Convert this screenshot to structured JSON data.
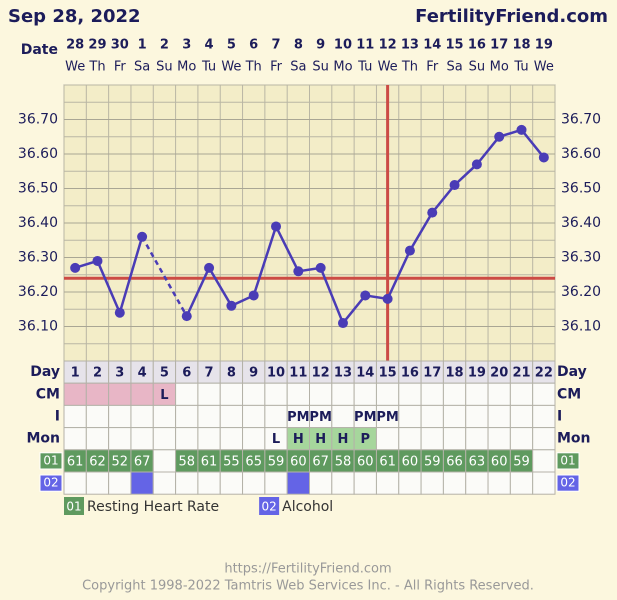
{
  "header": {
    "date": "Sep 28, 2022",
    "site": "FertilityFriend.com"
  },
  "chart_data": {
    "type": "line",
    "x_label": "Date",
    "categories": [
      "28",
      "29",
      "30",
      "1",
      "2",
      "3",
      "4",
      "5",
      "6",
      "7",
      "8",
      "9",
      "10",
      "11",
      "12",
      "13",
      "14",
      "15",
      "16",
      "17",
      "18",
      "19"
    ],
    "weekdays": [
      "We",
      "Th",
      "Fr",
      "Sa",
      "Su",
      "Mo",
      "Tu",
      "We",
      "Th",
      "Fr",
      "Sa",
      "Su",
      "Mo",
      "Tu",
      "We",
      "Th",
      "Fr",
      "Sa",
      "Su",
      "Mo",
      "Tu",
      "We"
    ],
    "series": [
      {
        "color": "#4a3cb6",
        "values": [
          36.27,
          36.29,
          36.14,
          36.36,
          null,
          36.13,
          36.27,
          36.16,
          36.19,
          36.39,
          36.26,
          36.27,
          36.11,
          36.19,
          36.18,
          36.32,
          36.43,
          36.51,
          36.57,
          36.65,
          36.67,
          36.59
        ]
      }
    ],
    "ylim": [
      36.0,
      36.8
    ],
    "yticks": [
      {
        "value": 36.1,
        "label": "36.10"
      },
      {
        "value": 36.2,
        "label": "36.20"
      },
      {
        "value": 36.3,
        "label": "36.30"
      },
      {
        "value": 36.4,
        "label": "36.40"
      },
      {
        "value": 36.5,
        "label": "36.50"
      },
      {
        "value": 36.6,
        "label": "36.60"
      },
      {
        "value": 36.7,
        "label": "36.70"
      }
    ],
    "grid": true,
    "coverline": 36.24,
    "ovulation_day": 15,
    "marker_color": "#cc4b45",
    "rows": [
      {
        "label": "Day",
        "values": [
          1,
          2,
          3,
          4,
          5,
          6,
          7,
          8,
          9,
          10,
          11,
          12,
          13,
          14,
          15,
          16,
          17,
          18,
          19,
          20,
          21,
          22
        ],
        "cell_color": "#e6e3ea"
      },
      {
        "label": "CM",
        "values": [
          null,
          null,
          null,
          null,
          "L",
          null,
          null,
          null,
          null,
          null,
          null,
          null,
          null,
          null,
          null,
          null,
          null,
          null,
          null,
          null,
          null,
          null
        ],
        "highlight_days": [
          1,
          2,
          3,
          4,
          5
        ],
        "highlight_color": "#e8b6c6"
      },
      {
        "label": "I",
        "values": [
          null,
          null,
          null,
          null,
          null,
          null,
          null,
          null,
          null,
          null,
          "PM",
          "PM",
          null,
          "PM",
          "PM",
          null,
          null,
          null,
          null,
          null,
          null,
          null
        ]
      },
      {
        "label": "Mon",
        "values": [
          null,
          null,
          null,
          null,
          null,
          null,
          null,
          null,
          null,
          "L",
          "H",
          "H",
          "H",
          "P",
          null,
          null,
          null,
          null,
          null,
          null,
          null,
          null
        ],
        "highlight_days": [
          11,
          12,
          13,
          14
        ],
        "highlight_color": "#a6d69c"
      },
      {
        "code": "01",
        "name": "Resting Heart Rate",
        "color": "#5f9a5f",
        "values": [
          61,
          62,
          52,
          67,
          null,
          58,
          61,
          55,
          65,
          59,
          60,
          67,
          58,
          60,
          61,
          60,
          59,
          66,
          63,
          60,
          59,
          null
        ]
      },
      {
        "code": "02",
        "name": "Alcohol",
        "color": "#6464e6",
        "values": [
          false,
          false,
          false,
          true,
          false,
          false,
          false,
          false,
          false,
          false,
          true,
          false,
          false,
          false,
          false,
          false,
          false,
          false,
          false,
          false,
          false,
          false
        ]
      }
    ]
  },
  "footer": {
    "url": "https://FertilityFriend.com",
    "copyright": "Copyright 1998-2022 Tamtris Web Services Inc. - All Rights Reserved."
  }
}
